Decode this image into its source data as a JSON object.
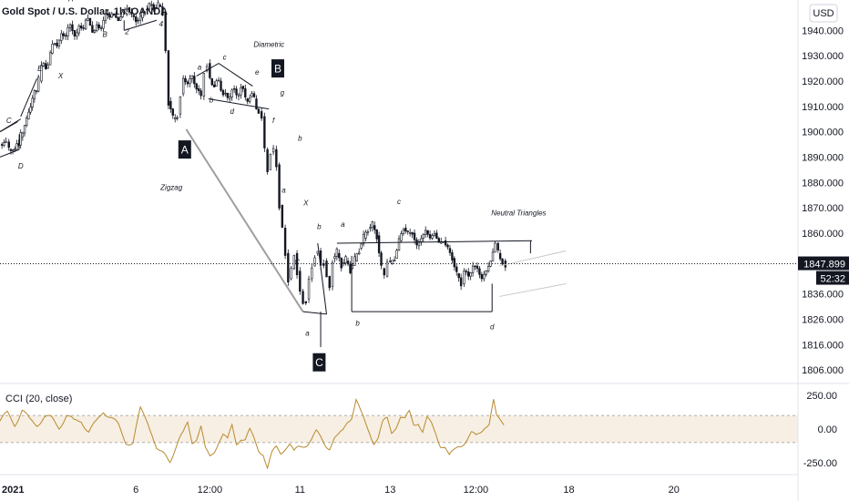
{
  "chart_data": {
    "type": "candlestick",
    "title": "Gold Spot / U.S. Dollar, 1h, OANDA",
    "currency": "USD",
    "last_price": {
      "value": 1847.899,
      "label": "1847.899",
      "countdown": "52:32",
      "color": "#131722"
    },
    "ylim": [
      1801,
      1952
    ],
    "yticks": [
      "1940.000",
      "1930.000",
      "1920.000",
      "1910.000",
      "1900.000",
      "1890.000",
      "1880.000",
      "1870.000",
      "1860.000",
      "1836.000",
      "1826.000",
      "1816.000",
      "1806.000"
    ],
    "ytick_values": [
      1940,
      1930,
      1920,
      1910,
      1900,
      1890,
      1880,
      1870,
      1860,
      1836,
      1826,
      1816,
      1806
    ],
    "xticks": [
      {
        "label": "2021",
        "x": 0,
        "bold": true
      },
      {
        "label": "6",
        "x": 92
      },
      {
        "label": "12:00",
        "x": 142
      },
      {
        "label": "11",
        "x": 203
      },
      {
        "label": "13",
        "x": 264
      },
      {
        "label": "12:00",
        "x": 322
      },
      {
        "label": "18",
        "x": 385
      },
      {
        "label": "20",
        "x": 456
      }
    ],
    "x_range": [
      0,
      540
    ],
    "price_path": [
      [
        0,
        1895
      ],
      [
        4,
        1896
      ],
      [
        6,
        1893
      ],
      [
        10,
        1893
      ],
      [
        14,
        1898
      ],
      [
        18,
        1905
      ],
      [
        22,
        1913
      ],
      [
        26,
        1920
      ],
      [
        28,
        1926
      ],
      [
        31,
        1925
      ],
      [
        34,
        1931
      ],
      [
        37,
        1935
      ],
      [
        40,
        1936
      ],
      [
        43,
        1938
      ],
      [
        46,
        1941
      ],
      [
        49,
        1940
      ],
      [
        52,
        1939
      ],
      [
        55,
        1941
      ],
      [
        58,
        1944
      ],
      [
        61,
        1942
      ],
      [
        64,
        1940
      ],
      [
        67,
        1941
      ],
      [
        70,
        1944
      ],
      [
        73,
        1946
      ],
      [
        77,
        1946
      ],
      [
        80,
        1944
      ],
      [
        83,
        1947
      ],
      [
        86,
        1949
      ],
      [
        89,
        1946
      ],
      [
        92,
        1944
      ],
      [
        95,
        1945
      ],
      [
        98,
        1948
      ],
      [
        101,
        1950
      ],
      [
        104,
        1949
      ],
      [
        107,
        1950
      ],
      [
        110,
        1947
      ],
      [
        112,
        1932
      ],
      [
        114,
        1912
      ],
      [
        117,
        1905
      ],
      [
        120,
        1907
      ],
      [
        122,
        1915
      ],
      [
        124,
        1921
      ],
      [
        127,
        1919
      ],
      [
        130,
        1922
      ],
      [
        133,
        1917
      ],
      [
        136,
        1914
      ],
      [
        138,
        1924
      ],
      [
        140,
        1927
      ],
      [
        142,
        1921
      ],
      [
        145,
        1918
      ],
      [
        148,
        1920
      ],
      [
        151,
        1915
      ],
      [
        154,
        1913
      ],
      [
        157,
        1917
      ],
      [
        160,
        1914
      ],
      [
        163,
        1918
      ],
      [
        166,
        1913
      ],
      [
        169,
        1914
      ],
      [
        172,
        1913
      ],
      [
        175,
        1908
      ],
      [
        177,
        1906
      ],
      [
        179,
        1893
      ],
      [
        181,
        1885
      ],
      [
        183,
        1892
      ],
      [
        185,
        1893
      ],
      [
        187,
        1887
      ],
      [
        189,
        1871
      ],
      [
        191,
        1862
      ],
      [
        193,
        1852
      ],
      [
        195,
        1842
      ],
      [
        197,
        1846
      ],
      [
        199,
        1852
      ],
      [
        201,
        1845
      ],
      [
        203,
        1837
      ],
      [
        205,
        1833
      ],
      [
        207,
        1834
      ],
      [
        209,
        1842
      ],
      [
        211,
        1847
      ],
      [
        213,
        1852
      ],
      [
        215,
        1853
      ],
      [
        217,
        1848
      ],
      [
        219,
        1849
      ],
      [
        221,
        1843
      ],
      [
        223,
        1839
      ],
      [
        225,
        1850
      ],
      [
        228,
        1852
      ],
      [
        231,
        1848
      ],
      [
        234,
        1849
      ],
      [
        237,
        1846
      ],
      [
        240,
        1849
      ],
      [
        243,
        1854
      ],
      [
        246,
        1858
      ],
      [
        249,
        1862
      ],
      [
        252,
        1863
      ],
      [
        255,
        1859
      ],
      [
        258,
        1846
      ],
      [
        260,
        1843
      ],
      [
        262,
        1849
      ],
      [
        264,
        1848
      ],
      [
        267,
        1850
      ],
      [
        270,
        1857
      ],
      [
        273,
        1862
      ],
      [
        276,
        1860
      ],
      [
        279,
        1860
      ],
      [
        282,
        1855
      ],
      [
        285,
        1858
      ],
      [
        288,
        1861
      ],
      [
        291,
        1858
      ],
      [
        294,
        1860
      ],
      [
        297,
        1856
      ],
      [
        300,
        1857
      ],
      [
        303,
        1854
      ],
      [
        306,
        1850
      ],
      [
        309,
        1844
      ],
      [
        312,
        1840
      ],
      [
        314,
        1845
      ],
      [
        317,
        1843
      ],
      [
        320,
        1847
      ],
      [
        323,
        1846
      ],
      [
        326,
        1842
      ],
      [
        329,
        1845
      ],
      [
        332,
        1849
      ],
      [
        335,
        1856
      ],
      [
        337,
        1852
      ],
      [
        340,
        1849
      ],
      [
        342,
        1848
      ]
    ],
    "cci_path": [
      [
        0,
        60
      ],
      [
        5,
        110
      ],
      [
        10,
        40
      ],
      [
        15,
        140
      ],
      [
        20,
        60
      ],
      [
        25,
        40
      ],
      [
        30,
        90
      ],
      [
        35,
        70
      ],
      [
        40,
        20
      ],
      [
        45,
        100
      ],
      [
        50,
        50
      ],
      [
        55,
        70
      ],
      [
        60,
        -20
      ],
      [
        65,
        40
      ],
      [
        70,
        140
      ],
      [
        75,
        90
      ],
      [
        80,
        20
      ],
      [
        85,
        -90
      ],
      [
        90,
        -100
      ],
      [
        95,
        140
      ],
      [
        100,
        60
      ],
      [
        103,
        -30
      ],
      [
        106,
        -150
      ],
      [
        108,
        -180
      ],
      [
        112,
        -200
      ],
      [
        115,
        -230
      ],
      [
        118,
        -150
      ],
      [
        121,
        -80
      ],
      [
        124,
        -40
      ],
      [
        127,
        40
      ],
      [
        130,
        -90
      ],
      [
        133,
        -60
      ],
      [
        136,
        20
      ],
      [
        139,
        -160
      ],
      [
        142,
        -210
      ],
      [
        145,
        -160
      ],
      [
        148,
        -80
      ],
      [
        151,
        -40
      ],
      [
        154,
        -90
      ],
      [
        157,
        20
      ],
      [
        160,
        -100
      ],
      [
        163,
        -60
      ],
      [
        166,
        -80
      ],
      [
        169,
        -20
      ],
      [
        172,
        -80
      ],
      [
        175,
        -150
      ],
      [
        178,
        -170
      ],
      [
        181,
        -290
      ],
      [
        184,
        -190
      ],
      [
        187,
        -140
      ],
      [
        190,
        -170
      ],
      [
        193,
        -130
      ],
      [
        196,
        -110
      ],
      [
        199,
        -180
      ],
      [
        202,
        -140
      ],
      [
        205,
        -120
      ],
      [
        208,
        -100
      ],
      [
        211,
        -70
      ],
      [
        214,
        -30
      ],
      [
        217,
        -70
      ],
      [
        220,
        -110
      ],
      [
        223,
        -130
      ],
      [
        226,
        -70
      ],
      [
        229,
        -60
      ],
      [
        232,
        -20
      ],
      [
        235,
        60
      ],
      [
        238,
        100
      ],
      [
        241,
        220
      ],
      [
        244,
        120
      ],
      [
        247,
        40
      ],
      [
        250,
        -20
      ],
      [
        253,
        -90
      ],
      [
        256,
        -60
      ],
      [
        259,
        40
      ],
      [
        262,
        70
      ],
      [
        265,
        -20
      ],
      [
        268,
        30
      ],
      [
        271,
        90
      ],
      [
        274,
        60
      ],
      [
        277,
        120
      ],
      [
        280,
        40
      ],
      [
        283,
        60
      ],
      [
        286,
        -20
      ],
      [
        289,
        70
      ],
      [
        292,
        30
      ],
      [
        295,
        -30
      ],
      [
        298,
        -110
      ],
      [
        301,
        -130
      ],
      [
        304,
        -210
      ],
      [
        307,
        -170
      ],
      [
        310,
        -120
      ],
      [
        313,
        -100
      ],
      [
        316,
        -80
      ],
      [
        319,
        -40
      ],
      [
        322,
        -60
      ],
      [
        325,
        -20
      ],
      [
        328,
        30
      ],
      [
        331,
        40
      ],
      [
        334,
        200
      ],
      [
        336,
        80
      ],
      [
        339,
        60
      ],
      [
        342,
        40
      ]
    ],
    "cci": {
      "title": "CCI (20, close)",
      "yticks": [
        "250.00",
        "0.00",
        "-250.00"
      ],
      "ytick_values": [
        250,
        0,
        -250
      ],
      "ylim": [
        -330,
        330
      ],
      "band": [
        -100,
        100
      ],
      "line_color": "#b88a2e",
      "band_color": "#f7efe3"
    },
    "annotations": {
      "labels": [
        {
          "text": "Diametric",
          "x": 182,
          "y": 1933.5
        },
        {
          "text": "Zigzag",
          "x": 116,
          "y": 1877
        },
        {
          "text": "Neutral Triangles",
          "x": 351,
          "y": 1867
        },
        {
          "text": "A",
          "x": 48,
          "y": 1951.5
        },
        {
          "text": "B",
          "x": 71,
          "y": 1937.5
        },
        {
          "text": "2",
          "x": 86,
          "y": 1938.5
        },
        {
          "text": "4",
          "x": 109,
          "y": 1941.5
        },
        {
          "text": "E",
          "x": 27,
          "y": 1924
        },
        {
          "text": "X",
          "x": 41,
          "y": 1921
        },
        {
          "text": "C",
          "x": 6,
          "y": 1903.5
        },
        {
          "text": "D",
          "x": 14,
          "y": 1885.5
        },
        {
          "text": "a",
          "x": 135,
          "y": 1924.5
        },
        {
          "text": "c",
          "x": 152,
          "y": 1928.5
        },
        {
          "text": "e",
          "x": 174,
          "y": 1922.5
        },
        {
          "text": "g",
          "x": 191,
          "y": 1914.5
        },
        {
          "text": "b",
          "x": 143,
          "y": 1911.5
        },
        {
          "text": "d",
          "x": 157,
          "y": 1907
        },
        {
          "text": "f",
          "x": 185,
          "y": 1903.5
        },
        {
          "text": "b",
          "x": 203,
          "y": 1896.5
        },
        {
          "text": "a",
          "x": 192,
          "y": 1876
        },
        {
          "text": "X",
          "x": 207,
          "y": 1871
        },
        {
          "text": "b",
          "x": 216,
          "y": 1861.5
        },
        {
          "text": "a",
          "x": 232,
          "y": 1862.5
        },
        {
          "text": "C",
          "x": 201,
          "y": 1847.5
        },
        {
          "text": "a",
          "x": 208,
          "y": 1819.5
        },
        {
          "text": "b",
          "x": 242,
          "y": 1823.5
        },
        {
          "text": "c",
          "x": 270,
          "y": 1871.5
        },
        {
          "text": "d",
          "x": 333,
          "y": 1822
        }
      ],
      "boxed_labels": [
        {
          "text": "A",
          "x": 125,
          "y": 1893
        },
        {
          "text": "B",
          "x": 188,
          "y": 1925
        },
        {
          "text": "C",
          "x": 216,
          "y": 1809
        }
      ],
      "lines": [
        [
          [
            126,
            1901
          ],
          [
            205,
            1829
          ]
        ],
        [
          [
            205,
            1829
          ],
          [
            221,
            1828
          ]
        ],
        [
          [
            215,
            1856
          ],
          [
            221,
            1828
          ]
        ],
        [
          [
            228,
            1856
          ],
          [
            360,
            1857
          ]
        ],
        [
          [
            238,
            1829
          ],
          [
            333,
            1829
          ]
        ],
        [
          [
            238,
            1829
          ],
          [
            238,
            1851
          ]
        ],
        [
          [
            333,
            1829
          ],
          [
            333,
            1840
          ]
        ],
        [
          [
            359,
            1857
          ],
          [
            359,
            1852
          ]
        ],
        [
          [
            133,
            1922
          ],
          [
            148,
            1927
          ]
        ],
        [
          [
            148,
            1927
          ],
          [
            171,
            1918
          ]
        ],
        [
          [
            141,
            1913
          ],
          [
            182,
            1909
          ]
        ],
        [
          [
            0,
            1900
          ],
          [
            12,
            1904
          ]
        ],
        [
          [
            0,
            1900
          ],
          [
            14,
            1905
          ]
        ],
        [
          [
            0,
            1890
          ],
          [
            13,
            1893
          ]
        ],
        [
          [
            13,
            1893
          ],
          [
            13,
            1899
          ]
        ],
        [
          [
            14,
            1906
          ],
          [
            25,
            1921
          ]
        ],
        [
          [
            84,
            1940
          ],
          [
            106,
            1944
          ]
        ],
        [
          [
            84,
            1940
          ],
          [
            84,
            1944
          ]
        ],
        [
          [
            217,
            1829
          ],
          [
            217,
            1815
          ]
        ]
      ],
      "faint_lines": [
        [
          [
            338,
            1847
          ],
          [
            383,
            1853
          ]
        ],
        [
          [
            338,
            1835
          ],
          [
            383,
            1840
          ]
        ]
      ]
    }
  }
}
